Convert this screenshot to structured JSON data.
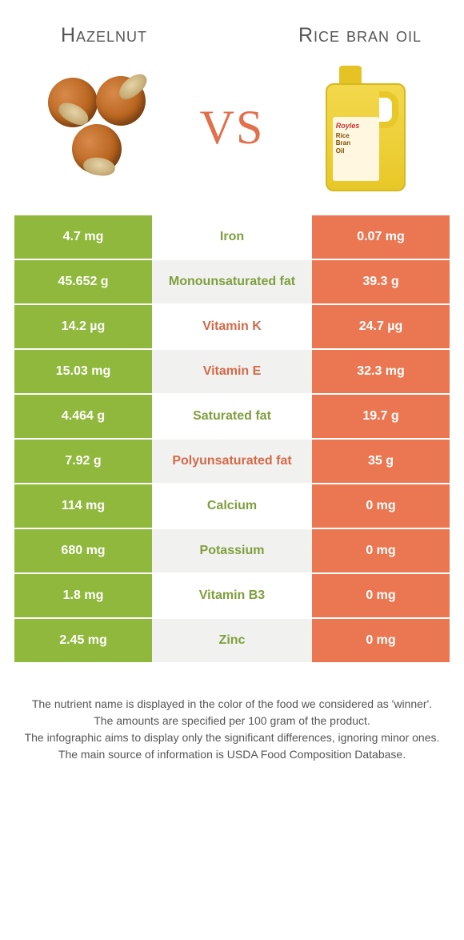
{
  "colors": {
    "left": "#8fb83c",
    "right": "#ea7752",
    "left_text": "#7e9f3d",
    "right_text": "#d26a4a",
    "vs": "#e2704c",
    "title": "#555555"
  },
  "header": {
    "left_title": "Hazelnut",
    "right_title": "Rice bran oil",
    "vs_label": "VS"
  },
  "bottle_label": {
    "brand": "Royles",
    "line": "Rice\nBran\nOil"
  },
  "rows": [
    {
      "name": "Iron",
      "left": "4.7 mg",
      "right": "0.07 mg",
      "winner": "left"
    },
    {
      "name": "Monounsaturated fat",
      "left": "45.652 g",
      "right": "39.3 g",
      "winner": "left"
    },
    {
      "name": "Vitamin K",
      "left": "14.2 µg",
      "right": "24.7 µg",
      "winner": "right"
    },
    {
      "name": "Vitamin E",
      "left": "15.03 mg",
      "right": "32.3 mg",
      "winner": "right"
    },
    {
      "name": "Saturated fat",
      "left": "4.464 g",
      "right": "19.7 g",
      "winner": "left"
    },
    {
      "name": "Polyunsaturated fat",
      "left": "7.92 g",
      "right": "35 g",
      "winner": "right"
    },
    {
      "name": "Calcium",
      "left": "114 mg",
      "right": "0 mg",
      "winner": "left"
    },
    {
      "name": "Potassium",
      "left": "680 mg",
      "right": "0 mg",
      "winner": "left"
    },
    {
      "name": "Vitamin B3",
      "left": "1.8 mg",
      "right": "0 mg",
      "winner": "left"
    },
    {
      "name": "Zinc",
      "left": "2.45 mg",
      "right": "0 mg",
      "winner": "left"
    }
  ],
  "footer": {
    "l1": "The nutrient name is displayed in the color of the food we considered as 'winner'.",
    "l2": "The amounts are specified per 100 gram of the product.",
    "l3": "The infographic aims to display only the significant differences, ignoring minor ones.",
    "l4": "The main source of information is USDA Food Composition Database."
  }
}
